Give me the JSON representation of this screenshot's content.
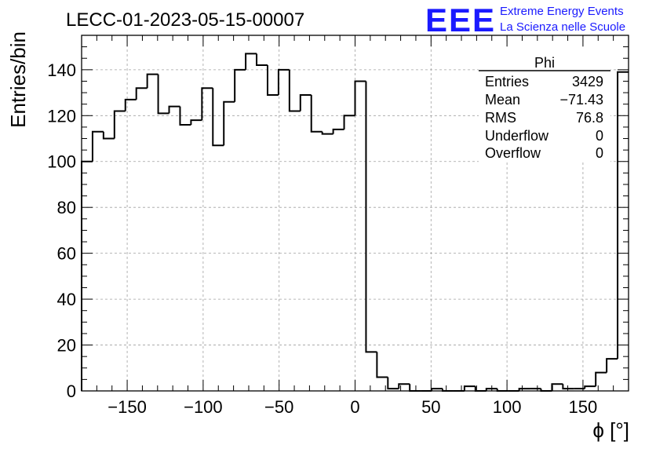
{
  "header": {
    "run_title": "LECC-01-2023-05-15-00007",
    "logo_text": "EEE",
    "brand_line1": "Extreme Energy Events",
    "brand_line2": "La Scienza nelle Scuole"
  },
  "colors": {
    "brand_blue": "#1a1aff",
    "histogram_line": "#000000",
    "grid": "#a0a0a0"
  },
  "stats_box": {
    "title": "Phi",
    "rows": [
      {
        "label": "Entries",
        "value": "3429"
      },
      {
        "label": "Mean",
        "value": "−71.43"
      },
      {
        "label": "RMS",
        "value": "76.8"
      },
      {
        "label": "Underflow",
        "value": "0"
      },
      {
        "label": "Overflow",
        "value": "0"
      }
    ]
  },
  "chart_data": {
    "type": "histogram",
    "title": "LECC-01-2023-05-15-00007",
    "xlabel": "ϕ [°]",
    "ylabel": "Entries/bin",
    "xlim": [
      -180,
      180
    ],
    "ylim": [
      0,
      155
    ],
    "bin_width": 7.2,
    "bin_edges_start": -180,
    "grid": true,
    "xticks": [
      -150,
      -100,
      -50,
      0,
      50,
      100,
      150
    ],
    "xtick_labels": [
      "−150",
      "−100",
      "−50",
      "0",
      "50",
      "100",
      "150"
    ],
    "yticks": [
      0,
      20,
      40,
      60,
      80,
      100,
      120,
      140
    ],
    "ytick_labels": [
      "0",
      "20",
      "40",
      "60",
      "80",
      "100",
      "120",
      "140"
    ],
    "values": [
      100,
      113,
      110,
      122,
      127,
      132,
      138,
      121,
      124,
      116,
      118,
      132,
      107,
      126,
      140,
      147,
      142,
      129,
      140,
      122,
      129,
      113,
      112,
      114,
      120,
      135,
      17,
      6,
      1,
      3,
      0,
      0,
      1,
      0,
      0,
      2,
      0,
      1,
      0,
      0,
      1,
      1,
      0,
      3,
      1,
      1,
      2,
      8,
      14,
      139
    ]
  }
}
